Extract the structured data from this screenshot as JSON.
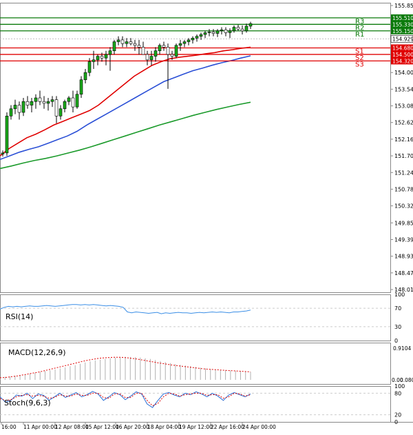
{
  "main_chart": {
    "price_labels": [
      "155.850",
      "155.510",
      "155.330",
      "155.150",
      "154.929",
      "154.680",
      "154.500",
      "154.320",
      "154.000",
      "153.540",
      "153.080",
      "152.620",
      "152.160",
      "151.700",
      "151.240",
      "150.780",
      "150.320",
      "149.850",
      "149.390",
      "148.930",
      "148.470",
      "148.010"
    ],
    "levels": [
      {
        "name": "R3",
        "price": "155.510",
        "color": "#0a7a0a"
      },
      {
        "name": "R2",
        "price": "155.330",
        "color": "#0a7a0a"
      },
      {
        "name": "R1",
        "price": "155.150",
        "color": "#0a7a0a"
      },
      {
        "name": "S1",
        "price": "154.680",
        "color": "#e00000"
      },
      {
        "name": "S2",
        "price": "154.500",
        "color": "#e00000"
      },
      {
        "name": "S3",
        "price": "154.320",
        "color": "#e00000"
      }
    ],
    "current_price": "154.929"
  },
  "rsi": {
    "label": "RSI(14)",
    "ticks": [
      "100",
      "70",
      "30",
      "0"
    ]
  },
  "macd": {
    "label": "MACD(12,26,9)",
    "ticks": [
      "0.9104",
      "0.00"
    ],
    "zero_right": "0.0801"
  },
  "stoch": {
    "label": "Stoch(9,6,3)",
    "ticks": [
      "100",
      "80",
      "20",
      "0"
    ]
  },
  "time_axis": [
    "16:00",
    "11 Apr 00:00",
    "12 Apr 08:00",
    "15 Apr 12:00",
    "16 Apr 20:00",
    "18 Apr 04:00",
    "19 Apr 12:00",
    "22 Apr 16:00",
    "24 Apr 00:00"
  ],
  "chart_data": [
    {
      "type": "candlestick",
      "title": "",
      "y_range": [
        148.01,
        155.85
      ],
      "pivot_levels": {
        "R3": 155.51,
        "R2": 155.33,
        "R1": 155.15,
        "S1": 154.68,
        "S2": 154.5,
        "S3": 154.32
      },
      "last_price": 154.929,
      "candles_ohlc": [
        [
          151.75,
          151.85,
          151.68,
          151.78
        ],
        [
          151.78,
          152.9,
          151.7,
          152.8
        ],
        [
          152.8,
          153.1,
          152.7,
          153.0
        ],
        [
          153.0,
          153.25,
          152.85,
          153.1
        ],
        [
          153.1,
          153.2,
          152.7,
          152.9
        ],
        [
          152.9,
          153.3,
          152.8,
          153.2
        ],
        [
          153.2,
          153.35,
          153.0,
          153.1
        ],
        [
          153.1,
          153.3,
          152.9,
          153.2
        ],
        [
          153.2,
          153.4,
          153.0,
          153.3
        ],
        [
          153.3,
          153.5,
          153.1,
          153.2
        ],
        [
          153.2,
          153.35,
          153.0,
          153.15
        ],
        [
          153.15,
          153.3,
          152.95,
          153.2
        ],
        [
          153.2,
          153.35,
          153.05,
          153.25
        ],
        [
          153.25,
          153.35,
          152.6,
          152.8
        ],
        [
          152.8,
          153.1,
          152.7,
          153.0
        ],
        [
          153.0,
          153.25,
          152.9,
          153.2
        ],
        [
          153.2,
          153.35,
          153.1,
          153.3
        ],
        [
          153.3,
          153.5,
          152.9,
          153.05
        ],
        [
          153.05,
          153.5,
          153.0,
          153.4
        ],
        [
          153.4,
          153.9,
          153.3,
          153.8
        ],
        [
          153.8,
          154.1,
          153.7,
          154.0
        ],
        [
          154.0,
          154.4,
          153.9,
          154.3
        ],
        [
          154.3,
          154.6,
          154.1,
          154.35
        ],
        [
          154.35,
          154.5,
          154.2,
          154.45
        ],
        [
          154.45,
          154.55,
          154.3,
          154.4
        ],
        [
          154.4,
          154.6,
          154.2,
          154.5
        ],
        [
          154.5,
          154.7,
          154.05,
          154.6
        ],
        [
          154.6,
          154.9,
          154.5,
          154.85
        ],
        [
          154.85,
          155.0,
          154.75,
          154.9
        ],
        [
          154.9,
          155.0,
          154.7,
          154.8
        ],
        [
          154.8,
          154.95,
          154.7,
          154.85
        ],
        [
          154.85,
          154.95,
          154.75,
          154.8
        ],
        [
          154.8,
          154.9,
          154.6,
          154.75
        ],
        [
          154.75,
          154.9,
          154.5,
          154.7
        ],
        [
          154.7,
          154.85,
          154.5,
          154.5
        ],
        [
          154.5,
          154.6,
          154.2,
          154.35
        ],
        [
          154.35,
          154.6,
          154.2,
          154.45
        ],
        [
          154.45,
          154.7,
          154.3,
          154.6
        ],
        [
          154.6,
          154.8,
          154.5,
          154.75
        ],
        [
          154.75,
          154.85,
          154.6,
          154.7
        ],
        [
          154.7,
          154.8,
          153.55,
          154.5
        ],
        [
          154.5,
          154.6,
          154.35,
          154.45
        ],
        [
          154.45,
          154.8,
          154.4,
          154.75
        ],
        [
          154.75,
          154.9,
          154.6,
          154.8
        ],
        [
          154.8,
          154.9,
          154.7,
          154.85
        ],
        [
          154.85,
          154.95,
          154.75,
          154.9
        ],
        [
          154.9,
          155.0,
          154.8,
          154.95
        ],
        [
          154.95,
          155.05,
          154.85,
          155.0
        ],
        [
          155.0,
          155.1,
          154.9,
          155.05
        ],
        [
          155.05,
          155.15,
          154.95,
          155.1
        ],
        [
          155.1,
          155.2,
          155.0,
          155.12
        ],
        [
          155.12,
          155.2,
          155.0,
          155.08
        ],
        [
          155.08,
          155.2,
          154.98,
          155.15
        ],
        [
          155.15,
          155.25,
          155.05,
          155.18
        ],
        [
          155.18,
          155.25,
          155.0,
          155.1
        ],
        [
          155.1,
          155.22,
          154.95,
          155.15
        ],
        [
          155.15,
          155.3,
          155.1,
          155.25
        ],
        [
          155.25,
          155.32,
          155.15,
          155.2
        ],
        [
          155.2,
          155.3,
          155.05,
          155.15
        ],
        [
          155.15,
          155.35,
          155.1,
          155.28
        ],
        [
          155.28,
          155.4,
          155.2,
          155.35
        ]
      ],
      "moving_averages": [
        {
          "color": "#e00000",
          "values": [
            151.7,
            151.9,
            152.05,
            152.2,
            152.3,
            152.42,
            152.55,
            152.65,
            152.75,
            152.85,
            152.95,
            153.1,
            153.3,
            153.5,
            153.7,
            153.9,
            154.05,
            154.2,
            154.3,
            154.38,
            154.42,
            154.45,
            154.48,
            154.52,
            154.55,
            154.6,
            154.63,
            154.67,
            154.7
          ]
        },
        {
          "color": "#2a4fd6",
          "values": [
            151.6,
            151.7,
            151.8,
            151.88,
            151.95,
            152.05,
            152.15,
            152.25,
            152.38,
            152.55,
            152.7,
            152.85,
            153.0,
            153.15,
            153.3,
            153.45,
            153.6,
            153.75,
            153.85,
            153.95,
            154.05,
            154.12,
            154.2,
            154.27,
            154.33,
            154.4,
            154.46
          ]
        },
        {
          "color": "#1a9a2a",
          "values": [
            151.35,
            151.42,
            151.5,
            151.57,
            151.63,
            151.7,
            151.78,
            151.86,
            151.95,
            152.05,
            152.15,
            152.25,
            152.35,
            152.45,
            152.55,
            152.64,
            152.73,
            152.82,
            152.9,
            152.98,
            153.05,
            153.12,
            153.18
          ]
        }
      ]
    },
    {
      "type": "line",
      "title": "RSI(14)",
      "y_range": [
        0,
        100
      ],
      "values": [
        68,
        72,
        74,
        73,
        74,
        73,
        74,
        75,
        74,
        74,
        75,
        76,
        75,
        74,
        75,
        76,
        77,
        78,
        78,
        77,
        78,
        77,
        78,
        77,
        76,
        75,
        76,
        75,
        74,
        72,
        62,
        60,
        62,
        61,
        60,
        59,
        60,
        61,
        58,
        60,
        59,
        60,
        61,
        60,
        60,
        59,
        60,
        61,
        60,
        61,
        62,
        61,
        62,
        61,
        60,
        62,
        62,
        63,
        64,
        66
      ]
    },
    {
      "type": "bar",
      "title": "MACD(12,26,9)",
      "y_range": [
        0,
        0.9104
      ],
      "values": [
        0.08,
        0.09,
        0.1,
        0.12,
        0.14,
        0.16,
        0.18,
        0.2,
        0.23,
        0.25,
        0.27,
        0.3,
        0.33,
        0.36,
        0.39,
        0.42,
        0.46,
        0.5,
        0.53,
        0.56,
        0.58,
        0.6,
        0.62,
        0.64,
        0.65,
        0.66,
        0.66,
        0.65,
        0.64,
        0.62,
        0.6,
        0.57,
        0.54,
        0.51,
        0.48,
        0.45,
        0.43,
        0.41,
        0.39,
        0.37,
        0.35,
        0.33,
        0.31,
        0.3,
        0.29,
        0.28,
        0.27,
        0.26,
        0.25,
        0.24,
        0.23
      ],
      "signal": [
        0.06,
        0.07,
        0.09,
        0.11,
        0.14,
        0.17,
        0.2,
        0.23,
        0.27,
        0.31,
        0.35,
        0.39,
        0.43,
        0.47,
        0.51,
        0.55,
        0.58,
        0.61,
        0.63,
        0.64,
        0.65,
        0.65,
        0.64,
        0.62,
        0.6,
        0.57,
        0.54,
        0.51,
        0.48,
        0.46,
        0.43,
        0.41,
        0.39,
        0.37,
        0.35,
        0.33,
        0.31,
        0.3,
        0.29,
        0.28,
        0.27,
        0.26,
        0.25,
        0.24,
        0.23
      ]
    },
    {
      "type": "line",
      "title": "Stoch(9,6,3)",
      "y_range": [
        0,
        100
      ],
      "series": [
        {
          "color": "#2a6fd6",
          "values": [
            70,
            55,
            60,
            75,
            72,
            80,
            65,
            78,
            74,
            60,
            70,
            80,
            68,
            75,
            82,
            70,
            76,
            85,
            78,
            60,
            70,
            82,
            76,
            62,
            72,
            84,
            78,
            50,
            40,
            60,
            78,
            82,
            75,
            70,
            80,
            76,
            84,
            78,
            70,
            80,
            72,
            60,
            75,
            82,
            76,
            70,
            78
          ]
        },
        {
          "color": "#e00000",
          "values": [
            65,
            60,
            62,
            70,
            74,
            76,
            72,
            74,
            72,
            66,
            68,
            76,
            72,
            72,
            78,
            74,
            74,
            80,
            80,
            68,
            66,
            78,
            78,
            68,
            68,
            80,
            80,
            60,
            45,
            52,
            70,
            80,
            78,
            72,
            76,
            78,
            80,
            80,
            74,
            76,
            76,
            66,
            70,
            80,
            78,
            72,
            76
          ]
        }
      ]
    }
  ]
}
